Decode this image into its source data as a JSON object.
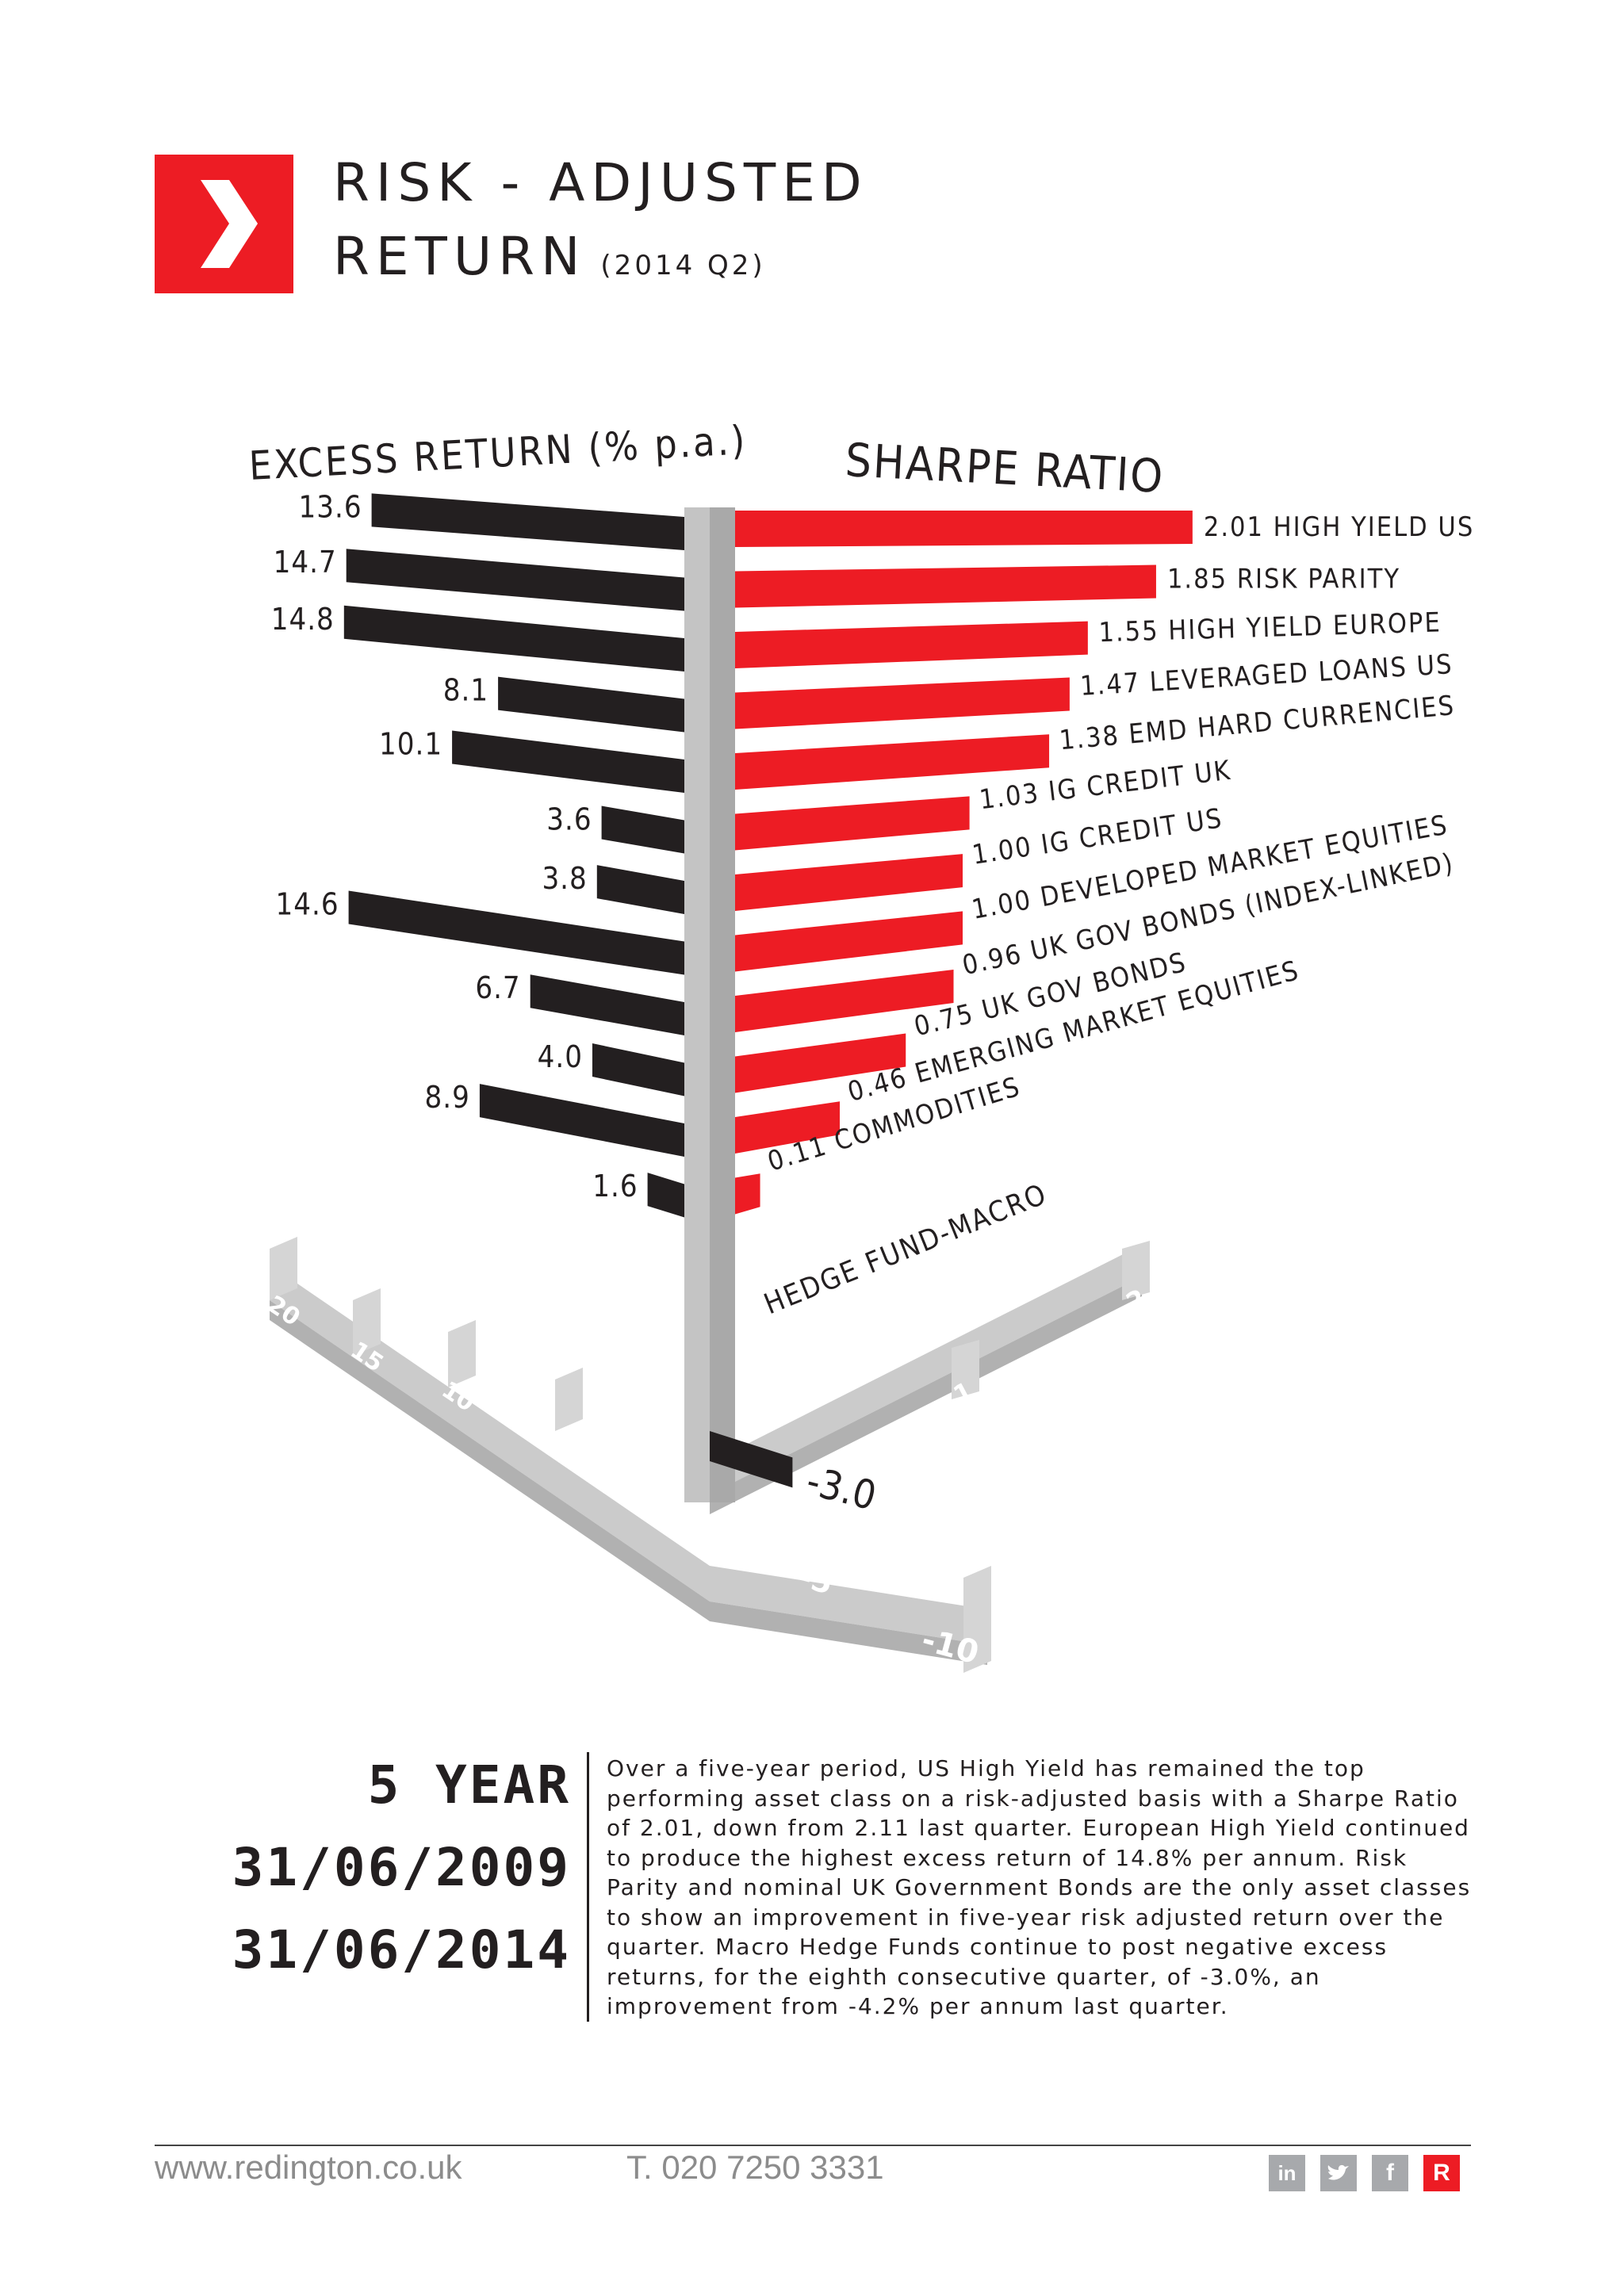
{
  "header": {
    "title_line1": "RISK - ADJUSTED",
    "title_line2": "RETURN",
    "period": "(2014 Q2)"
  },
  "colors": {
    "accent": "#ed1c24",
    "dark": "#231f20",
    "axis": "#c8c8c8"
  },
  "chart_data": {
    "type": "bar",
    "left_axis_title": "EXCESS RETURN (% p.a.)",
    "right_axis_title": "SHARPE RATIO",
    "categories": [
      "HIGH YIELD US",
      "RISK PARITY",
      "HIGH YIELD EUROPE",
      "LEVERAGED LOANS US",
      "EMD HARD CURRENCIES",
      "IG CREDIT UK",
      "IG CREDIT US",
      "DEVELOPED MARKET EQUITIES",
      "UK GOV BONDS (INDEX-LINKED)",
      "UK GOV BONDS",
      "EMERGING MARKET EQUITIES",
      "COMMODITIES",
      "HEDGE FUND-MACRO"
    ],
    "series": [
      {
        "name": "EXCESS RETURN (% p.a.)",
        "labels": [
          "13.6",
          "14.7",
          "14.8",
          "8.1",
          "10.1",
          "3.6",
          "3.8",
          "14.6",
          "6.7",
          "4.0",
          "8.9",
          "1.6",
          "-3.0"
        ],
        "values": [
          13.6,
          14.7,
          14.8,
          8.1,
          10.1,
          3.6,
          3.8,
          14.6,
          6.7,
          4.0,
          8.9,
          1.6,
          -3.0
        ]
      },
      {
        "name": "SHARPE RATIO",
        "labels": [
          "2.01",
          "1.85",
          "1.55",
          "1.47",
          "1.38",
          "1.03",
          "1.00",
          "1.00",
          "0.96",
          "0.75",
          "0.46",
          "0.11",
          ""
        ],
        "values": [
          2.01,
          1.85,
          1.55,
          1.47,
          1.38,
          1.03,
          1.0,
          1.0,
          0.96,
          0.75,
          0.46,
          0.11,
          null
        ]
      }
    ],
    "left_axis_ticks": [
      "20",
      "15",
      "10",
      "5",
      "-5",
      "-10"
    ],
    "right_axis_ticks": [
      "1",
      "2"
    ],
    "left_xlim": [
      -10,
      20
    ],
    "right_xlim": [
      0,
      2
    ]
  },
  "summary": {
    "period_title": "5 YEAR",
    "start_date": "31/06/2009",
    "end_date": "31/06/2014",
    "text": "Over a five-year period, US High Yield has remained the top performing asset class on a risk-adjusted basis with a Sharpe Ratio of 2.01, down from 2.11 last quarter.  European High Yield continued to produce the highest excess return of 14.8% per annum.  Risk Parity and nominal UK Government Bonds are the only asset classes to show an improvement in five-year risk adjusted return over the quarter. Macro Hedge Funds continue to post negative excess returns, for the eighth consecutive quarter, of -3.0%, an improvement from -4.2% per annum last quarter."
  },
  "footer": {
    "website": "www.redington.co.uk",
    "phone": "T. 020 7250 3331",
    "social": {
      "linkedin": "in",
      "twitter": "t",
      "facebook": "f",
      "redington": "R"
    }
  }
}
